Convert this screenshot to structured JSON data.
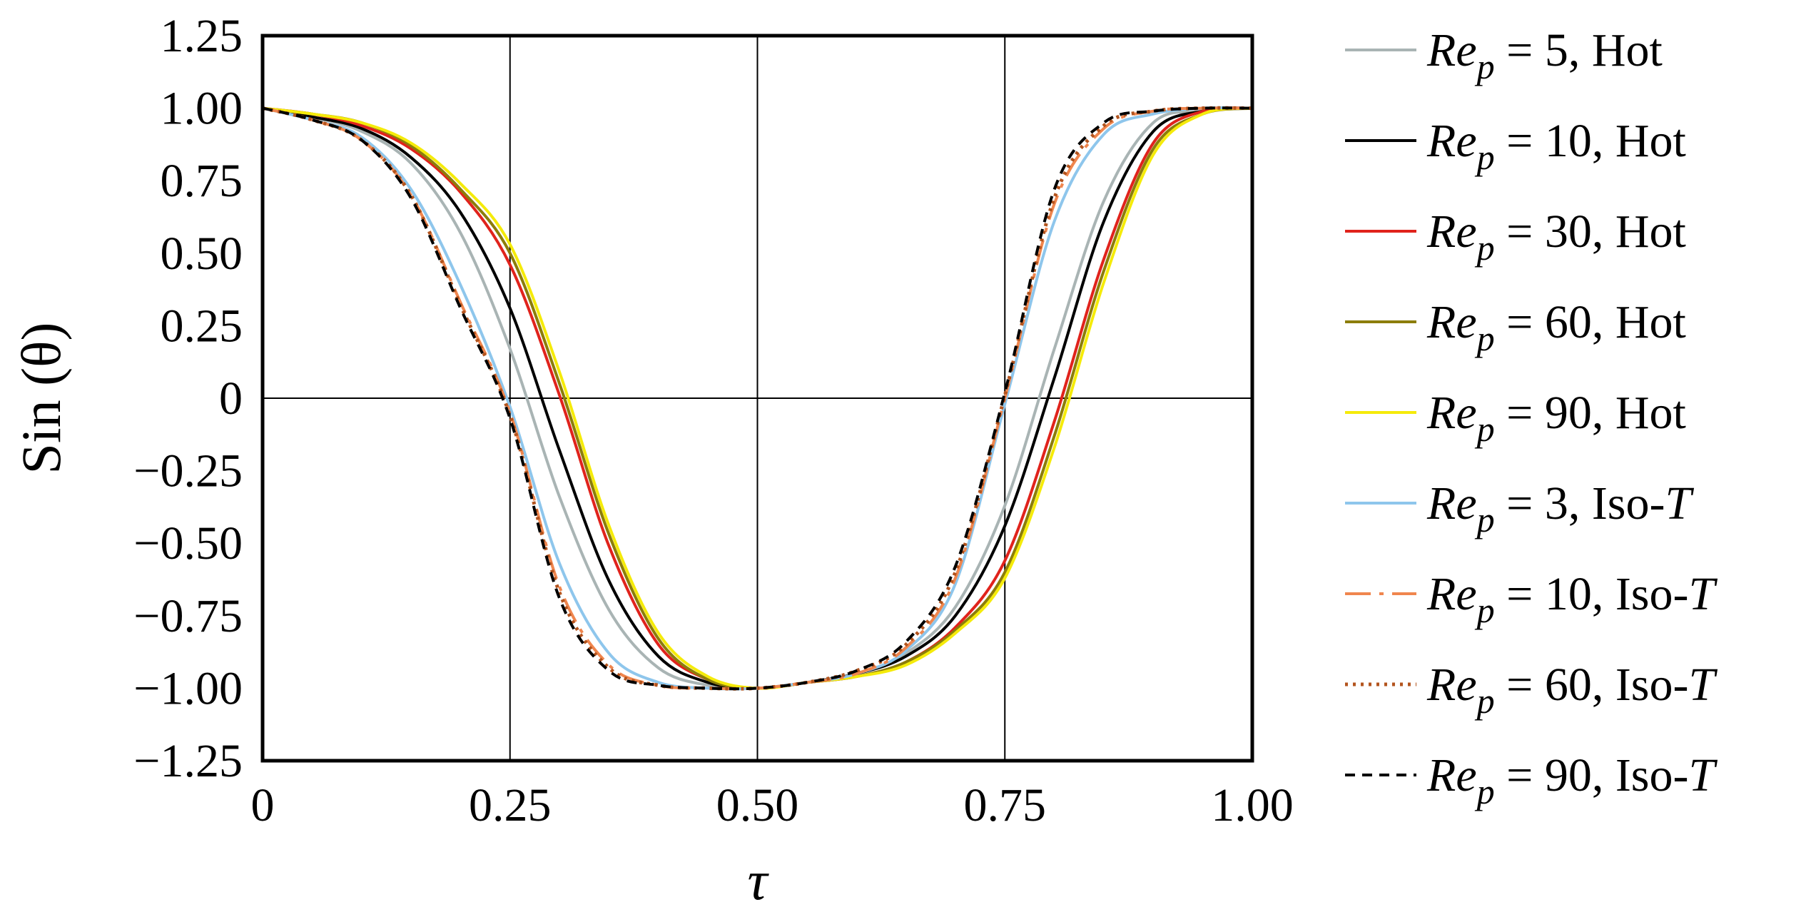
{
  "chart_data": {
    "type": "line",
    "title": "",
    "xlabel": "τ",
    "ylabel": "Sin (θ)",
    "xlim": [
      0,
      1
    ],
    "ylim": [
      -1.25,
      1.25
    ],
    "x_ticks": [
      0,
      0.25,
      0.5,
      0.75,
      1.0
    ],
    "x_tick_labels": [
      "0",
      "0.25",
      "0.50",
      "0.75",
      "1.00"
    ],
    "y_ticks": [
      1.25,
      1.0,
      0.75,
      0.5,
      0.25,
      0,
      -0.25,
      -0.5,
      -0.75,
      -1.0,
      -1.25
    ],
    "y_tick_labels": [
      "1.25",
      "1.00",
      "0.75",
      "0.50",
      "0.25",
      "0",
      "−0.25",
      "−0.50",
      "−0.75",
      "−1.00",
      "−1.25"
    ],
    "gridlines_x": [
      0.25,
      0.5,
      0.75
    ],
    "gridlines_y": [
      0
    ],
    "legend_position": "right",
    "x": [
      0,
      0.05,
      0.1,
      0.15,
      0.2,
      0.25,
      0.3,
      0.35,
      0.4,
      0.45,
      0.5,
      0.55,
      0.6,
      0.65,
      0.7,
      0.75,
      0.8,
      0.85,
      0.9,
      0.95,
      1.0
    ],
    "series": [
      {
        "name_main": "Re",
        "name_sub": "p",
        "name_rest": " = 5, Hot",
        "color": "#a9b4b4",
        "dash": "",
        "values": [
          1.0,
          0.97,
          0.92,
          0.81,
          0.57,
          0.17,
          -0.34,
          -0.73,
          -0.93,
          -0.99,
          -1.0,
          -0.98,
          -0.95,
          -0.88,
          -0.72,
          -0.37,
          0.17,
          0.68,
          0.95,
          0.99,
          1.0
        ]
      },
      {
        "name_main": "Re",
        "name_sub": "p",
        "name_rest": " = 10, Hot",
        "color": "#000000",
        "dash": "",
        "values": [
          1.0,
          0.97,
          0.93,
          0.83,
          0.64,
          0.31,
          -0.18,
          -0.63,
          -0.89,
          -0.98,
          -1.0,
          -0.98,
          -0.95,
          -0.89,
          -0.75,
          -0.44,
          0.07,
          0.61,
          0.92,
          0.99,
          1.0
        ]
      },
      {
        "name_main": "Re",
        "name_sub": "p",
        "name_rest": " = 30, Hot",
        "color": "#e0231c",
        "dash": "",
        "values": [
          1.0,
          0.98,
          0.94,
          0.86,
          0.71,
          0.46,
          0.01,
          -0.51,
          -0.85,
          -0.97,
          -1.0,
          -0.98,
          -0.96,
          -0.91,
          -0.79,
          -0.56,
          -0.08,
          0.48,
          0.88,
          0.99,
          1.0
        ]
      },
      {
        "name_main": "Re",
        "name_sub": "p",
        "name_rest": " = 60, Hot",
        "color": "#8c7d0a",
        "dash": "",
        "values": [
          1.0,
          0.98,
          0.95,
          0.87,
          0.72,
          0.5,
          0.05,
          -0.47,
          -0.83,
          -0.97,
          -1.0,
          -0.98,
          -0.96,
          -0.91,
          -0.8,
          -0.6,
          -0.13,
          0.44,
          0.86,
          0.98,
          1.0
        ]
      },
      {
        "name_main": "Re",
        "name_sub": "p",
        "name_rest": " = 90, Hot",
        "color": "#f5eb0a",
        "dash": "",
        "values": [
          1.0,
          0.98,
          0.95,
          0.88,
          0.74,
          0.53,
          0.09,
          -0.44,
          -0.81,
          -0.96,
          -1.0,
          -0.98,
          -0.96,
          -0.92,
          -0.81,
          -0.62,
          -0.17,
          0.4,
          0.84,
          0.98,
          1.0
        ]
      },
      {
        "name_main": "Re",
        "name_sub": "p",
        "name_rest": " = 3, Iso-",
        "name_tail": "T",
        "color": "#8ec6ec",
        "dash": "",
        "values": [
          1.0,
          0.96,
          0.9,
          0.72,
          0.39,
          -0.03,
          -0.57,
          -0.88,
          -0.98,
          -1.0,
          -1.0,
          -0.98,
          -0.95,
          -0.87,
          -0.64,
          -0.02,
          0.61,
          0.91,
          0.98,
          1.0,
          1.0
        ]
      },
      {
        "name_main": "Re",
        "name_sub": "p",
        "name_rest": " = 10, Iso-",
        "name_tail": "T",
        "color": "#f0864e",
        "dash": "36 12 6 12",
        "values": [
          1.0,
          0.96,
          0.89,
          0.7,
          0.33,
          -0.05,
          -0.65,
          -0.92,
          -0.99,
          -1.0,
          -1.0,
          -0.98,
          -0.95,
          -0.86,
          -0.62,
          0.0,
          0.67,
          0.93,
          0.99,
          1.0,
          1.0
        ]
      },
      {
        "name_main": "Re",
        "name_sub": "p",
        "name_rest": " = 60, Iso-",
        "name_tail": "T",
        "color": "#b3541e",
        "dash": "4 7",
        "values": [
          1.0,
          0.96,
          0.89,
          0.7,
          0.32,
          -0.06,
          -0.67,
          -0.93,
          -0.99,
          -1.0,
          -1.0,
          -0.98,
          -0.94,
          -0.85,
          -0.6,
          0.01,
          0.69,
          0.94,
          0.99,
          1.0,
          1.0
        ]
      },
      {
        "name_main": "Re",
        "name_sub": "p",
        "name_rest": " = 90, Iso-",
        "name_tail": "T",
        "color": "#000000",
        "dash": "14 10",
        "values": [
          1.0,
          0.96,
          0.89,
          0.69,
          0.31,
          -0.07,
          -0.69,
          -0.94,
          -0.99,
          -1.0,
          -1.0,
          -0.98,
          -0.94,
          -0.84,
          -0.58,
          0.02,
          0.72,
          0.95,
          0.99,
          1.0,
          1.0
        ]
      }
    ]
  }
}
